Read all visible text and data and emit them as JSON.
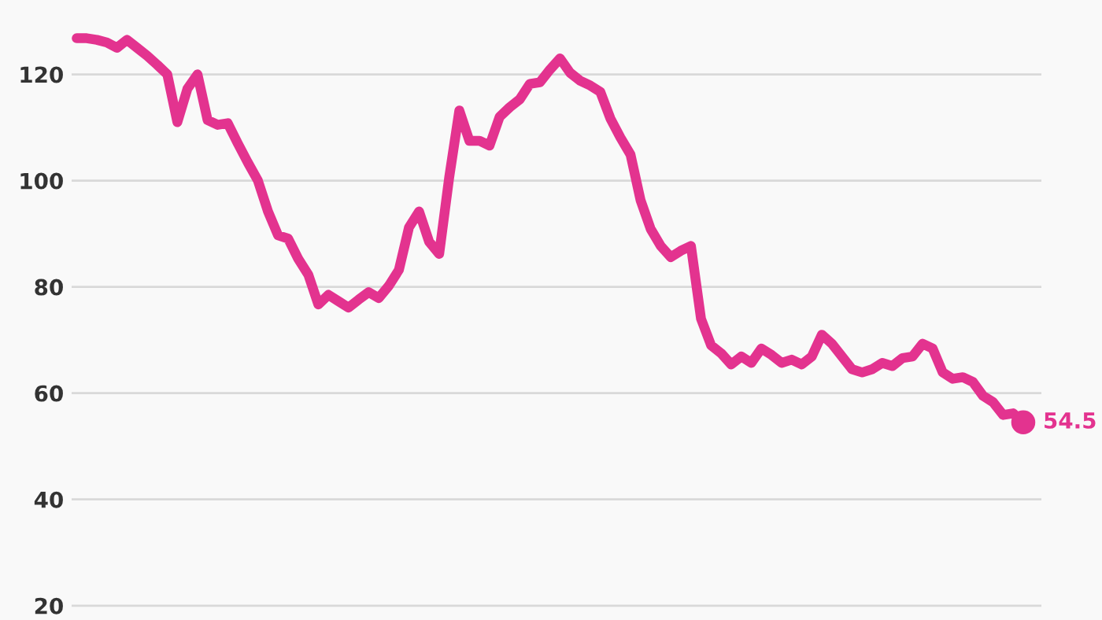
{
  "chart_data": {
    "type": "line",
    "categories": [
      null,
      null,
      null,
      null,
      null,
      null,
      null,
      null,
      null,
      null,
      null,
      null,
      null,
      null,
      null,
      null,
      null,
      null,
      null,
      null,
      null,
      null,
      null,
      null,
      null,
      null,
      null,
      null,
      null,
      null,
      null,
      null,
      null,
      null,
      null,
      null,
      null,
      null,
      null,
      null,
      null,
      null,
      null,
      null,
      null,
      null,
      null,
      null,
      null,
      null,
      null,
      null,
      null,
      null,
      null,
      null,
      null,
      null,
      null,
      null,
      null,
      null,
      null,
      null,
      null,
      null,
      null,
      null,
      null,
      null,
      null,
      null,
      null,
      null,
      null,
      null,
      null,
      null,
      null,
      null,
      null,
      null,
      null,
      null,
      null,
      null,
      null,
      null,
      null,
      null,
      null,
      null,
      null,
      null,
      null
    ],
    "series": [
      {
        "color": "#e3338f",
        "values": [
          126.8,
          126.8,
          126.5,
          126,
          125,
          126.5,
          125,
          123.5,
          121.8,
          120,
          111,
          117.3,
          120,
          111.4,
          110.5,
          110.8,
          107,
          103.4,
          100,
          94.2,
          89.7,
          89.1,
          85.3,
          82.3,
          76.7,
          78.5,
          77.3,
          76.1,
          77.6,
          79,
          77.9,
          80.2,
          83.2,
          91.2,
          94.2,
          88.5,
          86.2,
          100.7,
          113.2,
          107.5,
          107.5,
          106.6,
          112,
          113.8,
          115.3,
          118.2,
          118.5,
          120.9,
          123,
          120.3,
          118.8,
          117.9,
          116.7,
          111.7,
          108.1,
          104.9,
          96.3,
          90.9,
          87.7,
          85.6,
          86.8,
          87.7,
          74,
          69,
          67.5,
          65.4,
          66.9,
          65.7,
          68.4,
          67.2,
          65.7,
          66.3,
          65.4,
          66.9,
          71,
          69.3,
          66.9,
          64.5,
          63.9,
          64.5,
          65.7,
          65.1,
          66.6,
          66.9,
          69.3,
          68.4,
          63.9,
          62.7,
          63,
          62.1,
          59.5,
          58.3,
          55.9,
          56.2,
          54.5
        ],
        "value_labels": [
          null,
          null,
          null,
          null,
          null,
          null,
          null,
          null,
          null,
          null,
          null,
          null,
          null,
          null,
          null,
          null,
          null,
          null,
          null,
          null,
          null,
          null,
          null,
          null,
          null,
          null,
          null,
          null,
          null,
          null,
          null,
          null,
          null,
          null,
          null,
          null,
          null,
          null,
          null,
          null,
          null,
          null,
          null,
          null,
          null,
          null,
          null,
          null,
          null,
          null,
          null,
          null,
          null,
          null,
          null,
          null,
          null,
          null,
          null,
          null,
          null,
          null,
          null,
          null,
          null,
          null,
          null,
          null,
          null,
          null,
          null,
          null,
          null,
          null,
          null,
          null,
          null,
          null,
          null,
          null,
          null,
          null,
          null,
          null,
          null,
          null,
          null,
          null,
          null,
          null,
          null,
          null,
          null,
          null,
          "54.5"
        ]
      }
    ],
    "ylim": [
      17.3,
      134
    ],
    "yticks": [
      20,
      40,
      60,
      80,
      100,
      120
    ],
    "grid": "y",
    "tick_labels": "y"
  }
}
